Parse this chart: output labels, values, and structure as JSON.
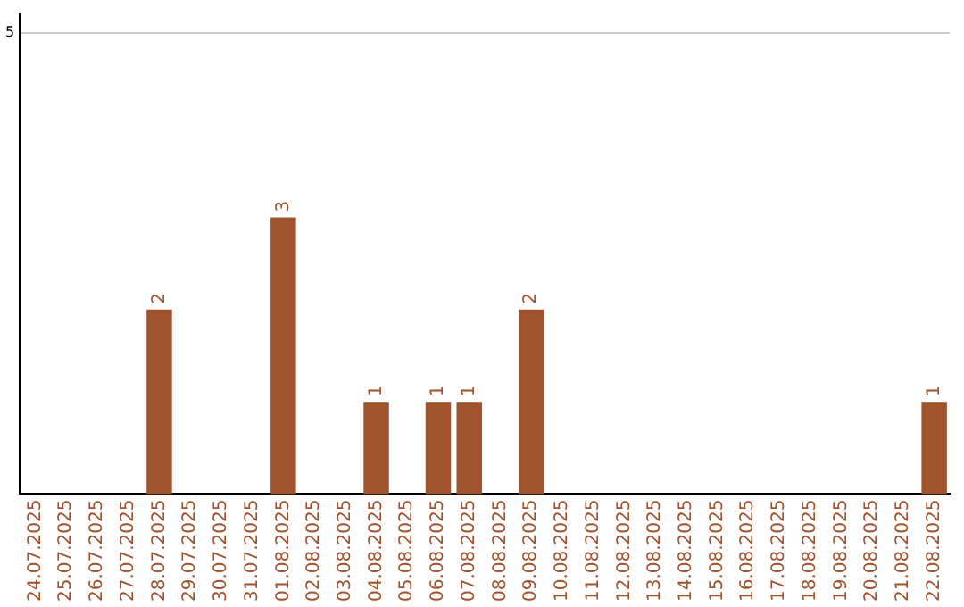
{
  "chart_data": {
    "type": "bar",
    "categories": [
      "24.07.2025",
      "25.07.2025",
      "26.07.2025",
      "27.07.2025",
      "28.07.2025",
      "29.07.2025",
      "30.07.2025",
      "31.07.2025",
      "01.08.2025",
      "02.08.2025",
      "03.08.2025",
      "04.08.2025",
      "05.08.2025",
      "06.08.2025",
      "07.08.2025",
      "08.08.2025",
      "09.08.2025",
      "10.08.2025",
      "11.08.2025",
      "12.08.2025",
      "13.08.2025",
      "14.08.2025",
      "15.08.2025",
      "16.08.2025",
      "17.08.2025",
      "18.08.2025",
      "19.08.2025",
      "20.08.2025",
      "21.08.2025",
      "22.08.2025"
    ],
    "values": [
      0,
      0,
      0,
      0,
      2,
      0,
      0,
      0,
      3,
      0,
      0,
      1,
      0,
      1,
      1,
      0,
      2,
      0,
      0,
      0,
      0,
      0,
      0,
      0,
      0,
      0,
      0,
      0,
      0,
      1
    ],
    "value_labels": [
      null,
      null,
      null,
      null,
      "2",
      null,
      null,
      null,
      "3",
      null,
      null,
      "1",
      null,
      "1",
      "1",
      null,
      "2",
      null,
      null,
      null,
      null,
      null,
      null,
      null,
      null,
      null,
      null,
      null,
      null,
      "1"
    ],
    "color": "#a0522d",
    "ylim": [
      0,
      5.2
    ],
    "yticks": [
      5
    ],
    "grid": "y",
    "legend": false
  }
}
